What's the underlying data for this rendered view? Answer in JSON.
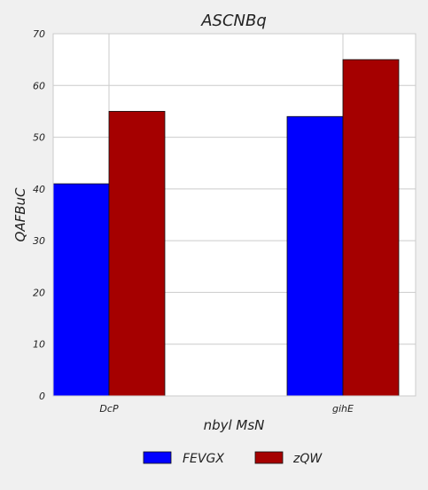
{
  "chart_data": {
    "type": "bar",
    "title": "ASCNBq",
    "xlabel": "nbyl MsN",
    "ylabel": "QAFBuC",
    "categories": [
      "DcP",
      "gihE"
    ],
    "series": [
      {
        "name": "FEVGX",
        "values": [
          41,
          54
        ],
        "color": "#0000ff"
      },
      {
        "name": "zQW",
        "values": [
          55,
          65
        ],
        "color": "#a50000"
      }
    ],
    "ylim": [
      0,
      70
    ],
    "yticks": [
      0,
      10,
      20,
      30,
      40,
      50,
      60,
      70
    ],
    "grid": true,
    "legend_position": "bottom"
  }
}
